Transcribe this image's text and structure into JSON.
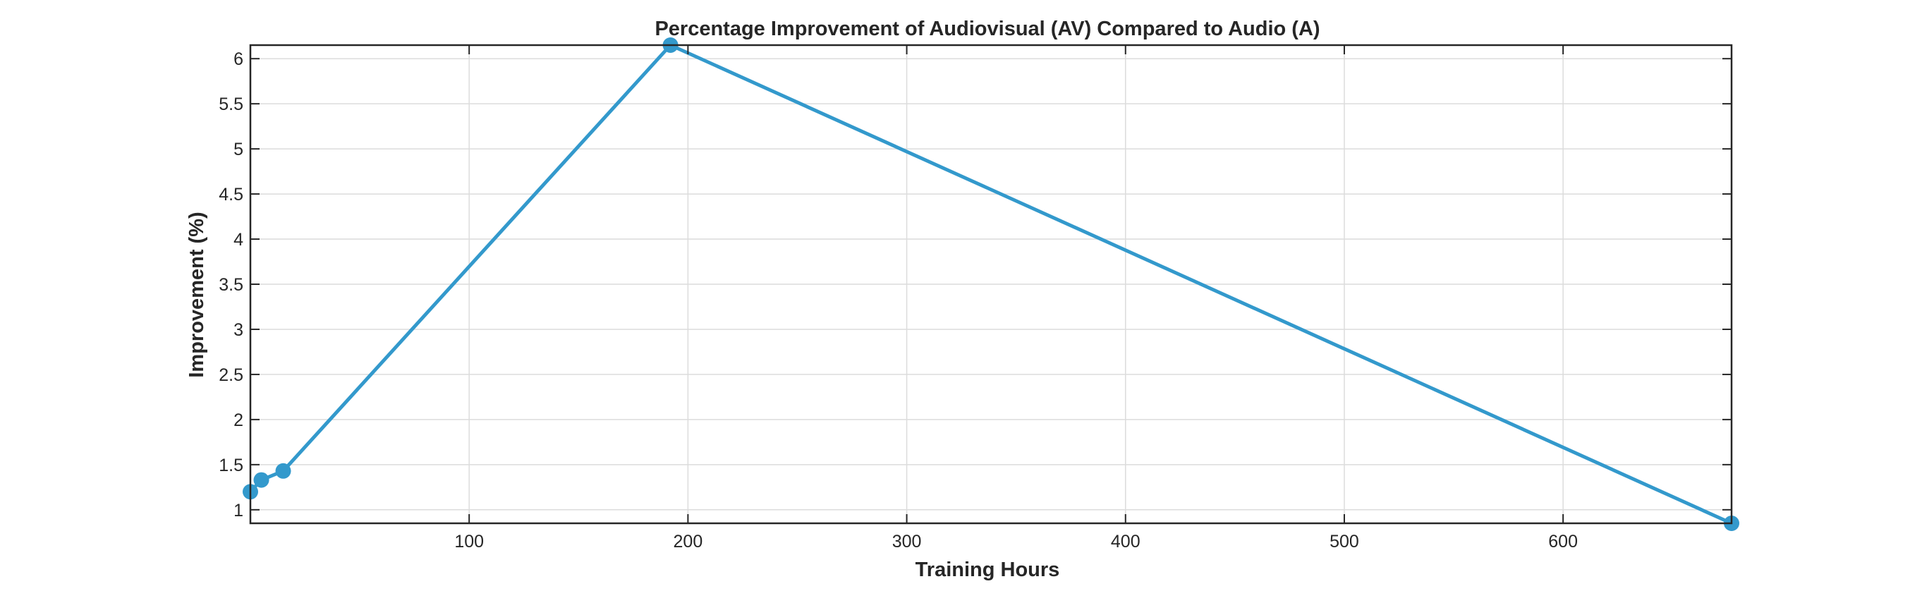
{
  "chart_data": {
    "type": "line",
    "title": "Percentage Improvement of Audiovisual (AV) Compared to Audio (A)",
    "xlabel": "Training Hours",
    "ylabel": "Improvement (%)",
    "xlim": [
      0,
      677
    ],
    "ylim": [
      0.85,
      6.15
    ],
    "xticks": [
      100,
      200,
      300,
      400,
      500,
      600
    ],
    "xtick_labels": [
      "100",
      "200",
      "300",
      "400",
      "500",
      "600"
    ],
    "yticks": [
      1,
      1.5,
      2,
      2.5,
      3,
      3.5,
      4,
      4.5,
      5,
      5.5,
      6
    ],
    "ytick_labels": [
      "1",
      "1.5",
      "2",
      "2.5",
      "3",
      "3.5",
      "4",
      "4.5",
      "5",
      "5.5",
      "6"
    ],
    "grid": true,
    "series": [
      {
        "color": "#3399cc",
        "marker": "circle",
        "x": [
          0,
          5,
          15,
          192,
          677
        ],
        "y": [
          1.2,
          1.33,
          1.43,
          6.15,
          0.85
        ]
      }
    ]
  }
}
